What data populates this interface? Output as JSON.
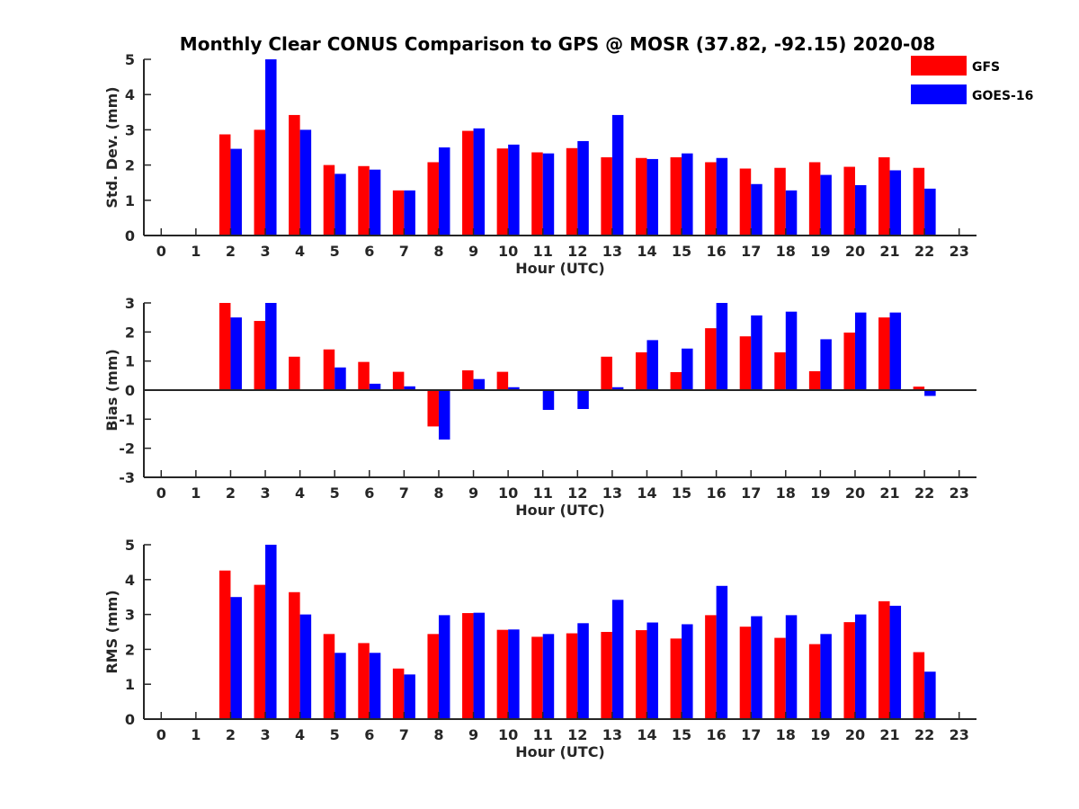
{
  "figure": {
    "title": "Monthly Clear CONUS Comparison to GPS @ MOSR (37.82, -92.15) 2020-08"
  },
  "legend": {
    "placement": "top-right",
    "items": [
      {
        "label": "GFS",
        "color": "#ff0000"
      },
      {
        "label": "GOES-16",
        "color": "#0000ff"
      }
    ]
  },
  "chart_data": [
    {
      "type": "bar",
      "xlabel": "Hour (UTC)",
      "ylabel": "Std. Dev. (mm)",
      "ylim": [
        0,
        5
      ],
      "yticks": [
        0,
        1,
        2,
        3,
        4,
        5
      ],
      "xlim": [
        -0.5,
        23.5
      ],
      "categories": [
        "0",
        "1",
        "2",
        "3",
        "4",
        "5",
        "6",
        "7",
        "8",
        "9",
        "10",
        "11",
        "12",
        "13",
        "14",
        "15",
        "16",
        "17",
        "18",
        "19",
        "20",
        "21",
        "22",
        "23"
      ],
      "grid": false,
      "series": [
        {
          "name": "GFS",
          "color": "#ff0000",
          "values": [
            null,
            null,
            2.87,
            3.0,
            3.42,
            2.0,
            1.97,
            1.28,
            2.08,
            2.97,
            2.47,
            2.36,
            2.48,
            2.22,
            2.2,
            2.22,
            2.08,
            1.9,
            1.92,
            2.08,
            1.95,
            2.22,
            1.92,
            null
          ]
        },
        {
          "name": "GOES-16",
          "color": "#0000ff",
          "values": [
            null,
            null,
            2.46,
            5.0,
            3.0,
            1.75,
            1.87,
            1.28,
            2.5,
            3.04,
            2.58,
            2.33,
            2.68,
            3.42,
            2.17,
            2.33,
            2.2,
            1.46,
            1.28,
            1.72,
            1.43,
            1.85,
            1.33,
            null
          ]
        }
      ]
    },
    {
      "type": "bar",
      "xlabel": "Hour (UTC)",
      "ylabel": "Bias (mm)",
      "ylim": [
        -3,
        3
      ],
      "yticks": [
        -3,
        -2,
        -1,
        0,
        1,
        2,
        3
      ],
      "xlim": [
        -0.5,
        23.5
      ],
      "categories": [
        "0",
        "1",
        "2",
        "3",
        "4",
        "5",
        "6",
        "7",
        "8",
        "9",
        "10",
        "11",
        "12",
        "13",
        "14",
        "15",
        "16",
        "17",
        "18",
        "19",
        "20",
        "21",
        "22",
        "23"
      ],
      "grid": false,
      "zero_line": true,
      "series": [
        {
          "name": "GFS",
          "color": "#ff0000",
          "values": [
            null,
            null,
            3.0,
            2.38,
            1.15,
            1.4,
            0.97,
            0.63,
            -1.25,
            0.68,
            0.63,
            -0.03,
            0.0,
            1.15,
            1.3,
            0.62,
            2.13,
            1.85,
            1.3,
            0.65,
            1.98,
            2.5,
            0.12,
            null
          ]
        },
        {
          "name": "GOES-16",
          "color": "#0000ff",
          "values": [
            null,
            null,
            2.5,
            3.0,
            null,
            0.78,
            0.22,
            0.13,
            -1.7,
            0.38,
            0.1,
            -0.68,
            -0.65,
            0.1,
            1.72,
            1.43,
            3.0,
            2.57,
            2.7,
            1.75,
            2.67,
            2.67,
            -0.2,
            null
          ]
        }
      ]
    },
    {
      "type": "bar",
      "xlabel": "Hour (UTC)",
      "ylabel": "RMS (mm)",
      "ylim": [
        0,
        5
      ],
      "yticks": [
        0,
        1,
        2,
        3,
        4,
        5
      ],
      "xlim": [
        -0.5,
        23.5
      ],
      "categories": [
        "0",
        "1",
        "2",
        "3",
        "4",
        "5",
        "6",
        "7",
        "8",
        "9",
        "10",
        "11",
        "12",
        "13",
        "14",
        "15",
        "16",
        "17",
        "18",
        "19",
        "20",
        "21",
        "22",
        "23"
      ],
      "grid": false,
      "series": [
        {
          "name": "GFS",
          "color": "#ff0000",
          "values": [
            null,
            null,
            4.26,
            3.85,
            3.64,
            2.44,
            2.18,
            1.45,
            2.44,
            3.04,
            2.56,
            2.36,
            2.46,
            2.5,
            2.55,
            2.31,
            2.98,
            2.65,
            2.33,
            2.15,
            2.78,
            3.38,
            1.92,
            null
          ]
        },
        {
          "name": "GOES-16",
          "color": "#0000ff",
          "values": [
            null,
            null,
            3.5,
            5.0,
            3.0,
            1.9,
            1.9,
            1.28,
            2.98,
            3.05,
            2.57,
            2.44,
            2.75,
            3.42,
            2.77,
            2.72,
            3.82,
            2.95,
            2.98,
            2.44,
            3.0,
            3.25,
            1.36,
            null
          ]
        }
      ]
    }
  ]
}
